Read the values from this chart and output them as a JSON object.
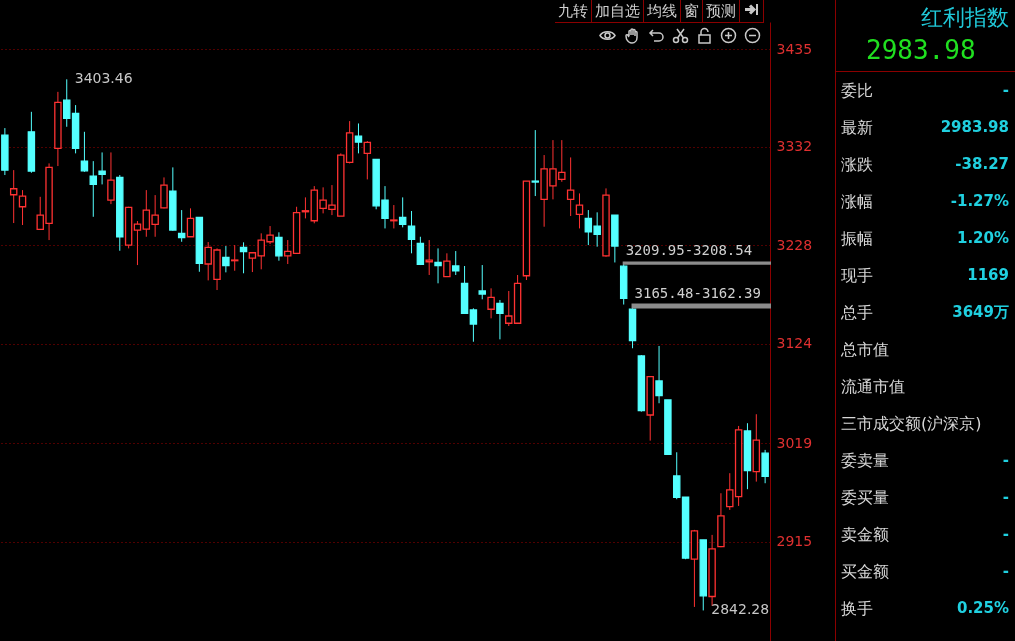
{
  "chart_data": [
    {
      "type": "candlestick",
      "categories": [
        null,
        null,
        null,
        null,
        null,
        null,
        null,
        null,
        null,
        null,
        null,
        null,
        null,
        null,
        null,
        null,
        null,
        null,
        null,
        null,
        null,
        null,
        null,
        null,
        null,
        null,
        null,
        null,
        null,
        null,
        null,
        null,
        null,
        null,
        null,
        null,
        null,
        null,
        null,
        null,
        null,
        null,
        null,
        null,
        null,
        null,
        null,
        null,
        null,
        null,
        null,
        null,
        null,
        null,
        null,
        null,
        null,
        null,
        null,
        null,
        null,
        null,
        null,
        null,
        null,
        null,
        null,
        null,
        null,
        null,
        null,
        null,
        null,
        null,
        null,
        null,
        null,
        null,
        null,
        null,
        null,
        null,
        null,
        null,
        null,
        null,
        null
      ],
      "ohlc": [
        [
          3344.5,
          3351.9,
          3302.3,
          3307.5
        ],
        [
          3281.5,
          3307.5,
          3251.6,
          3287.8
        ],
        [
          3268.8,
          3286.4,
          3249.5,
          3280.1
        ],
        [
          3348.0,
          3369.1,
          3304.7,
          3306.5
        ],
        [
          3244.9,
          3279.3,
          3244.2,
          3260.0
        ],
        [
          3251.3,
          3314.6,
          3233.6,
          3310.4
        ],
        [
          3330.5,
          3390.2,
          3311.8,
          3379.0
        ],
        [
          3381.5,
          3403.46,
          3353.3,
          3362.1
        ],
        [
          3367.4,
          3376.2,
          3325.2,
          3330.5
        ],
        [
          3317.0,
          3348.0,
          3305.7,
          3306.8
        ],
        [
          3301.2,
          3317.0,
          3258.2,
          3292.4
        ],
        [
          3306.5,
          3326.2,
          3292.4,
          3303.0
        ],
        [
          3275.9,
          3326.2,
          3271.6,
          3296.9
        ],
        [
          3299.8,
          3302.3,
          3222.3,
          3237.1
        ],
        [
          3228.3,
          3268.8,
          3224.8,
          3268.2
        ],
        [
          3244.2,
          3253.7,
          3207.2,
          3250.5
        ],
        [
          3245.2,
          3286.4,
          3237.1,
          3265.3
        ],
        [
          3250.2,
          3281.1,
          3237.1,
          3260.0
        ],
        [
          3267.7,
          3299.8,
          3267.1,
          3291.7
        ],
        [
          3285.4,
          3310.4,
          3243.4,
          3244.2
        ],
        [
          3240.7,
          3265.3,
          3231.8,
          3236.1
        ],
        [
          3237.1,
          3267.1,
          3237.1,
          3256.5
        ],
        [
          3257.6,
          3257.6,
          3200.1,
          3209.0
        ],
        [
          3208.3,
          3231.5,
          3191.0,
          3225.9
        ],
        [
          3192.1,
          3224.8,
          3180.8,
          3223.1
        ],
        [
          3215.4,
          3227.3,
          3199.5,
          3206.5
        ],
        [
          3211.8,
          3228.3,
          3201.2,
          3212.5
        ],
        [
          3225.9,
          3231.2,
          3198.5,
          3221.3
        ],
        [
          3214.6,
          3220.2,
          3199.8,
          3220.2
        ],
        [
          3217.0,
          3240.7,
          3202.7,
          3233.6
        ],
        [
          3231.8,
          3248.4,
          3229.4,
          3238.9
        ],
        [
          3236.5,
          3241.8,
          3211.8,
          3217.0
        ],
        [
          3217.0,
          3233.6,
          3208.3,
          3221.7
        ],
        [
          3219.6,
          3268.8,
          3219.6,
          3262.5
        ],
        [
          3263.5,
          3278.7,
          3256.5,
          3264.6
        ],
        [
          3254.0,
          3290.6,
          3251.3,
          3286.4
        ],
        [
          3267.1,
          3289.3,
          3261.8,
          3275.9
        ],
        [
          3266.1,
          3291.7,
          3260.0,
          3270.6
        ],
        [
          3259.0,
          3325.2,
          3259.0,
          3323.4
        ],
        [
          3315.7,
          3359.3,
          3314.6,
          3346.9
        ],
        [
          3343.4,
          3356.8,
          3325.2,
          3337.1
        ],
        [
          3325.2,
          3338.2,
          3297.7,
          3336.8
        ],
        [
          3318.8,
          3318.8,
          3266.1,
          3269.8
        ],
        [
          3275.9,
          3290.6,
          3245.9,
          3256.5
        ],
        [
          3254.0,
          3270.6,
          3245.9,
          3254.8
        ],
        [
          3257.6,
          3278.7,
          3247.0,
          3250.2
        ],
        [
          3248.4,
          3264.3,
          3219.6,
          3234.4
        ],
        [
          3230.1,
          3237.1,
          3207.2,
          3208.0
        ],
        [
          3210.7,
          3233.6,
          3196.7,
          3212.5
        ],
        [
          3210.1,
          3224.8,
          3187.9,
          3206.5
        ],
        [
          3194.9,
          3219.6,
          3194.9,
          3211.4
        ],
        [
          3206.2,
          3222.0,
          3196.7,
          3201.2
        ],
        [
          3187.9,
          3206.2,
          3155.5,
          3156.2
        ],
        [
          3159.7,
          3161.5,
          3126.2,
          3144.9
        ],
        [
          3179.8,
          3207.2,
          3171.0,
          3176.6
        ],
        [
          3160.5,
          3182.6,
          3150.9,
          3173.1
        ],
        [
          3166.8,
          3170.3,
          3128.7,
          3156.2
        ],
        [
          3145.7,
          3179.8,
          3142.8,
          3153.4
        ],
        [
          3145.7,
          3196.7,
          3145.7,
          3187.9
        ],
        [
          3195.9,
          3295.9,
          3191.4,
          3295.9
        ],
        [
          3295.9,
          3349.8,
          3280.1,
          3294.9
        ],
        [
          3276.6,
          3323.4,
          3247.7,
          3308.9
        ],
        [
          3290.9,
          3339.2,
          3276.6,
          3308.9
        ],
        [
          3297.7,
          3339.2,
          3295.2,
          3305.1
        ],
        [
          3276.6,
          3320.9,
          3259.0,
          3286.4
        ],
        [
          3260.8,
          3282.9,
          3245.9,
          3270.6
        ],
        [
          3256.5,
          3265.3,
          3228.3,
          3242.4
        ],
        [
          3248.4,
          3262.9,
          3226.6,
          3239.6
        ],
        [
          3217.0,
          3288.2,
          3216.0,
          3281.1
        ],
        [
          3260.0,
          3260.0,
          3209.95,
          3227.3
        ],
        [
          3206.0,
          3208.54,
          3165.48,
          3172.1
        ],
        [
          3160.5,
          3162.39,
          3119.3,
          3127.3
        ],
        [
          3111.1,
          3112.1,
          3052.3,
          3053.4
        ],
        [
          3048.8,
          3090.0,
          3021.7,
          3089.3
        ],
        [
          3084.7,
          3121.7,
          3061.2,
          3069.2
        ],
        [
          3064.7,
          3064.7,
          3006.5,
          3007.3
        ],
        [
          2984.4,
          3009.4,
          2959.8,
          2961.9
        ],
        [
          2961.9,
          2961.9,
          2896.4,
          2897.5
        ],
        [
          2896.4,
          2927.4,
          2846.0,
          2926.3
        ],
        [
          2916.8,
          2916.8,
          2842.28,
          2857.7
        ],
        [
          2857.0,
          2922.1,
          2847.1,
          2907.3
        ],
        [
          2909.7,
          2966.1,
          2909.1,
          2942.2
        ],
        [
          2952.0,
          2987.3,
          2948.5,
          2969.6
        ],
        [
          2962.6,
          3037.2,
          2952.7,
          3033.0
        ],
        [
          3031.9,
          3040.1,
          2970.4,
          2990.0
        ],
        [
          2988.9,
          3049.6,
          2978.4,
          3022.25
        ],
        [
          3008.4,
          3011.9,
          2976.7,
          2983.98
        ]
      ],
      "colors": [
        "#54ffff",
        "#ff3232",
        "#ff3232",
        "#54ffff",
        "#ff3232",
        "#ff3232",
        "#ff3232",
        "#54ffff",
        "#54ffff",
        "#54ffff",
        "#54ffff",
        "#54ffff",
        "#ff3232",
        "#54ffff",
        "#ff3232",
        "#ff3232",
        "#ff3232",
        "#ff3232",
        "#ff3232",
        "#54ffff",
        "#54ffff",
        "#ff3232",
        "#54ffff",
        "#ff3232",
        "#ff3232",
        "#54ffff",
        "#ff3232",
        "#54ffff",
        "#ff3232",
        "#ff3232",
        "#ff3232",
        "#54ffff",
        "#ff3232",
        "#ff3232",
        "#ff3232",
        "#ff3232",
        "#ff3232",
        "#ff3232",
        "#ff3232",
        "#ff3232",
        "#54ffff",
        "#ff3232",
        "#54ffff",
        "#54ffff",
        "#ff3232",
        "#54ffff",
        "#54ffff",
        "#54ffff",
        "#ff3232",
        "#54ffff",
        "#ff3232",
        "#54ffff",
        "#54ffff",
        "#54ffff",
        "#54ffff",
        "#ff3232",
        "#54ffff",
        "#ff3232",
        "#ff3232",
        "#ff3232",
        "#54ffff",
        "#ff3232",
        "#ff3232",
        "#ff3232",
        "#ff3232",
        "#ff3232",
        "#54ffff",
        "#54ffff",
        "#ff3232",
        "#54ffff",
        "#54ffff",
        "#54ffff",
        "#54ffff",
        "#ff3232",
        "#54ffff",
        "#54ffff",
        "#54ffff",
        "#54ffff",
        "#ff3232",
        "#54ffff",
        "#ff3232",
        "#ff3232",
        "#ff3232",
        "#ff3232",
        "#54ffff",
        "#ff3232",
        "#54ffff"
      ],
      "ylim": [
        2810,
        3464
      ],
      "yticks": [
        3435,
        3332,
        3228,
        3124,
        3019,
        2915
      ],
      "grid": "y",
      "tick_labels": "y",
      "bands": [
        {
          "axis": "y",
          "from": 3208.54,
          "to": 3209.95,
          "label": "3209.95-3208.54",
          "color": "#8c8c8c"
        },
        {
          "axis": "y",
          "from": 3162.39,
          "to": 3165.48,
          "label": "3165.48-3162.39",
          "color": "#8c8c8c"
        }
      ],
      "annotations": [
        "3403.46",
        "2842.28"
      ]
    },
    {
      "type": "other",
      "annotations": [
        "九转",
        "加自选",
        "均线",
        "窗",
        "预测"
      ]
    },
    {
      "type": "other",
      "title": "红利指数",
      "subtitle": "2983.98",
      "annotations": [
        "委比 -",
        "最新 2983.98",
        "涨跌 -38.27",
        "涨幅 -1.27%",
        "振幅 1.20%",
        "现手 1169",
        "总手 3649万",
        "总市值",
        "流通市值",
        "三市成交额(沪深京)",
        "委卖量 -",
        "委买量 -",
        "卖金额 -",
        "买金额 -",
        "换手 0.25%"
      ]
    }
  ]
}
